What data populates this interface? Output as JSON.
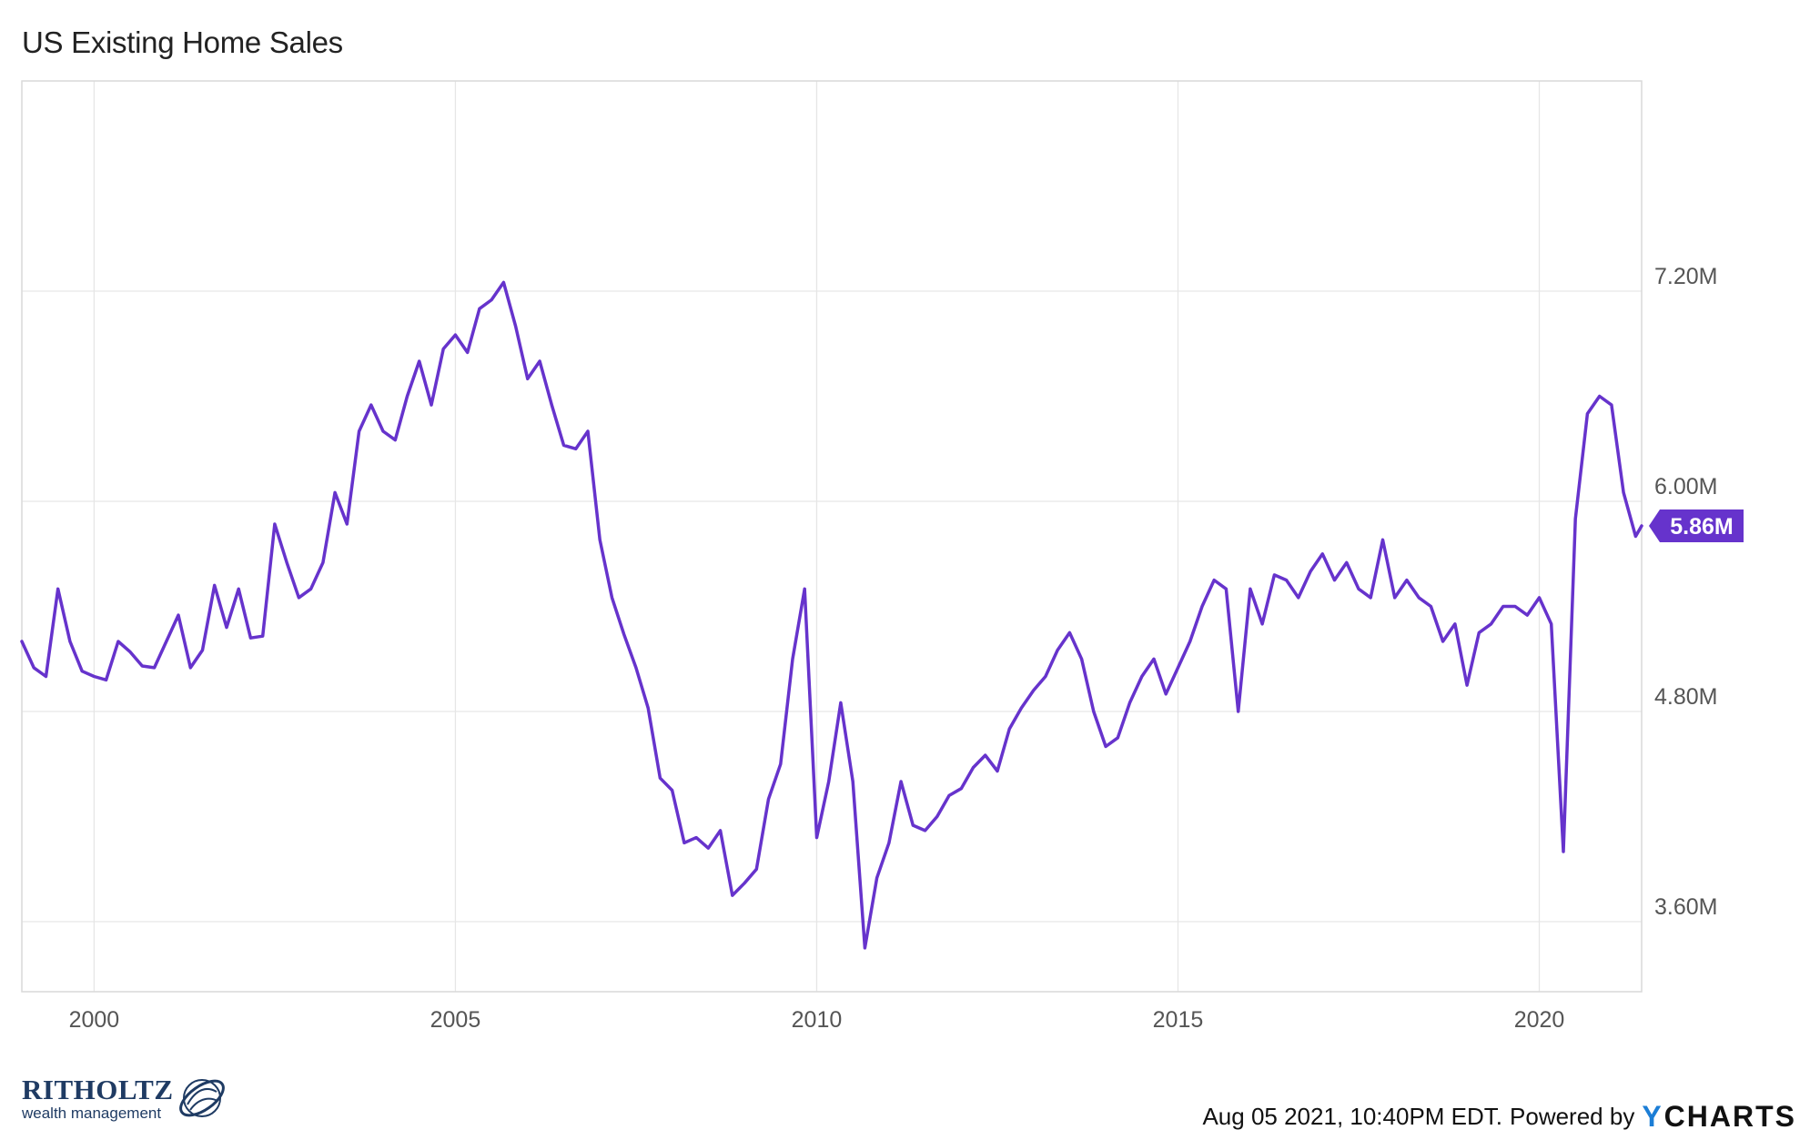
{
  "title": "US Existing Home Sales",
  "chart_data": {
    "type": "line",
    "title": "US Existing Home Sales",
    "xlabel": "",
    "ylabel": "",
    "x_ticks": [
      "2000",
      "2005",
      "2010",
      "2015",
      "2020"
    ],
    "y_ticks": [
      "3.60M",
      "4.80M",
      "6.00M",
      "7.20M"
    ],
    "ylim": [
      3.2,
      8.4
    ],
    "xlim": [
      "1999-01",
      "2021-06"
    ],
    "grid": true,
    "series": [
      {
        "color": "#6633cc",
        "unit": "M",
        "last_value_label": "5.86M",
        "points": [
          [
            "1999-01",
            5.2
          ],
          [
            "1999-03",
            5.05
          ],
          [
            "1999-05",
            5.0
          ],
          [
            "1999-07",
            5.5
          ],
          [
            "1999-09",
            5.2
          ],
          [
            "1999-11",
            5.03
          ],
          [
            "2000-01",
            5.0
          ],
          [
            "2000-03",
            4.98
          ],
          [
            "2000-05",
            5.2
          ],
          [
            "2000-07",
            5.14
          ],
          [
            "2000-09",
            5.06
          ],
          [
            "2000-11",
            5.05
          ],
          [
            "2001-01",
            5.2
          ],
          [
            "2001-03",
            5.35
          ],
          [
            "2001-05",
            5.05
          ],
          [
            "2001-07",
            5.15
          ],
          [
            "2001-09",
            5.52
          ],
          [
            "2001-11",
            5.28
          ],
          [
            "2002-01",
            5.5
          ],
          [
            "2002-03",
            5.22
          ],
          [
            "2002-05",
            5.23
          ],
          [
            "2002-07",
            5.87
          ],
          [
            "2002-09",
            5.65
          ],
          [
            "2002-11",
            5.45
          ],
          [
            "2003-01",
            5.5
          ],
          [
            "2003-03",
            5.65
          ],
          [
            "2003-05",
            6.05
          ],
          [
            "2003-07",
            5.87
          ],
          [
            "2003-09",
            6.4
          ],
          [
            "2003-11",
            6.55
          ],
          [
            "2004-01",
            6.4
          ],
          [
            "2004-03",
            6.35
          ],
          [
            "2004-05",
            6.6
          ],
          [
            "2004-07",
            6.8
          ],
          [
            "2004-09",
            6.55
          ],
          [
            "2004-11",
            6.87
          ],
          [
            "2005-01",
            6.95
          ],
          [
            "2005-03",
            6.85
          ],
          [
            "2005-05",
            7.1
          ],
          [
            "2005-07",
            7.15
          ],
          [
            "2005-09",
            7.25
          ],
          [
            "2005-11",
            7.0
          ],
          [
            "2006-01",
            6.7
          ],
          [
            "2006-03",
            6.8
          ],
          [
            "2006-05",
            6.55
          ],
          [
            "2006-07",
            6.32
          ],
          [
            "2006-09",
            6.3
          ],
          [
            "2006-11",
            6.4
          ],
          [
            "2007-01",
            5.78
          ],
          [
            "2007-03",
            5.45
          ],
          [
            "2007-05",
            5.24
          ],
          [
            "2007-07",
            5.05
          ],
          [
            "2007-09",
            4.82
          ],
          [
            "2007-11",
            4.42
          ],
          [
            "2008-01",
            4.35
          ],
          [
            "2008-03",
            4.05
          ],
          [
            "2008-05",
            4.08
          ],
          [
            "2008-07",
            4.02
          ],
          [
            "2008-09",
            4.12
          ],
          [
            "2008-11",
            3.75
          ],
          [
            "2009-01",
            3.82
          ],
          [
            "2009-03",
            3.9
          ],
          [
            "2009-05",
            4.3
          ],
          [
            "2009-07",
            4.5
          ],
          [
            "2009-09",
            5.1
          ],
          [
            "2009-11",
            5.5
          ],
          [
            "2010-01",
            4.08
          ],
          [
            "2010-03",
            4.4
          ],
          [
            "2010-05",
            4.85
          ],
          [
            "2010-07",
            4.4
          ],
          [
            "2010-09",
            3.45
          ],
          [
            "2010-11",
            3.85
          ],
          [
            "2011-01",
            4.05
          ],
          [
            "2011-03",
            4.4
          ],
          [
            "2011-05",
            4.15
          ],
          [
            "2011-07",
            4.12
          ],
          [
            "2011-09",
            4.2
          ],
          [
            "2011-11",
            4.32
          ],
          [
            "2012-01",
            4.36
          ],
          [
            "2012-03",
            4.48
          ],
          [
            "2012-05",
            4.55
          ],
          [
            "2012-07",
            4.46
          ],
          [
            "2012-09",
            4.7
          ],
          [
            "2012-11",
            4.82
          ],
          [
            "2013-01",
            4.92
          ],
          [
            "2013-03",
            5.0
          ],
          [
            "2013-05",
            5.15
          ],
          [
            "2013-07",
            5.25
          ],
          [
            "2013-09",
            5.1
          ],
          [
            "2013-11",
            4.8
          ],
          [
            "2014-01",
            4.6
          ],
          [
            "2014-03",
            4.65
          ],
          [
            "2014-05",
            4.85
          ],
          [
            "2014-07",
            5.0
          ],
          [
            "2014-09",
            5.1
          ],
          [
            "2014-11",
            4.9
          ],
          [
            "2015-01",
            5.05
          ],
          [
            "2015-03",
            5.2
          ],
          [
            "2015-05",
            5.4
          ],
          [
            "2015-07",
            5.55
          ],
          [
            "2015-09",
            5.5
          ],
          [
            "2015-11",
            4.8
          ],
          [
            "2016-01",
            5.5
          ],
          [
            "2016-03",
            5.3
          ],
          [
            "2016-05",
            5.58
          ],
          [
            "2016-07",
            5.55
          ],
          [
            "2016-09",
            5.45
          ],
          [
            "2016-11",
            5.6
          ],
          [
            "2017-01",
            5.7
          ],
          [
            "2017-03",
            5.55
          ],
          [
            "2017-05",
            5.65
          ],
          [
            "2017-07",
            5.5
          ],
          [
            "2017-09",
            5.45
          ],
          [
            "2017-11",
            5.78
          ],
          [
            "2018-01",
            5.45
          ],
          [
            "2018-03",
            5.55
          ],
          [
            "2018-05",
            5.45
          ],
          [
            "2018-07",
            5.4
          ],
          [
            "2018-09",
            5.2
          ],
          [
            "2018-11",
            5.3
          ],
          [
            "2019-01",
            4.95
          ],
          [
            "2019-03",
            5.25
          ],
          [
            "2019-05",
            5.3
          ],
          [
            "2019-07",
            5.4
          ],
          [
            "2019-09",
            5.4
          ],
          [
            "2019-11",
            5.35
          ],
          [
            "2020-01",
            5.45
          ],
          [
            "2020-03",
            5.3
          ],
          [
            "2020-05",
            4.0
          ],
          [
            "2020-07",
            5.9
          ],
          [
            "2020-09",
            6.5
          ],
          [
            "2020-11",
            6.6
          ],
          [
            "2021-01",
            6.55
          ],
          [
            "2021-03",
            6.05
          ],
          [
            "2021-05",
            5.8
          ],
          [
            "2021-06",
            5.86
          ]
        ]
      }
    ]
  },
  "footer": {
    "stamp": "Aug 05 2021, 10:40PM EDT.",
    "powered_by": "Powered by",
    "brand_y": "Y",
    "brand_rest": "CHARTS"
  },
  "logo": {
    "name": "RITHOLTZ",
    "subtitle": "wealth management"
  }
}
